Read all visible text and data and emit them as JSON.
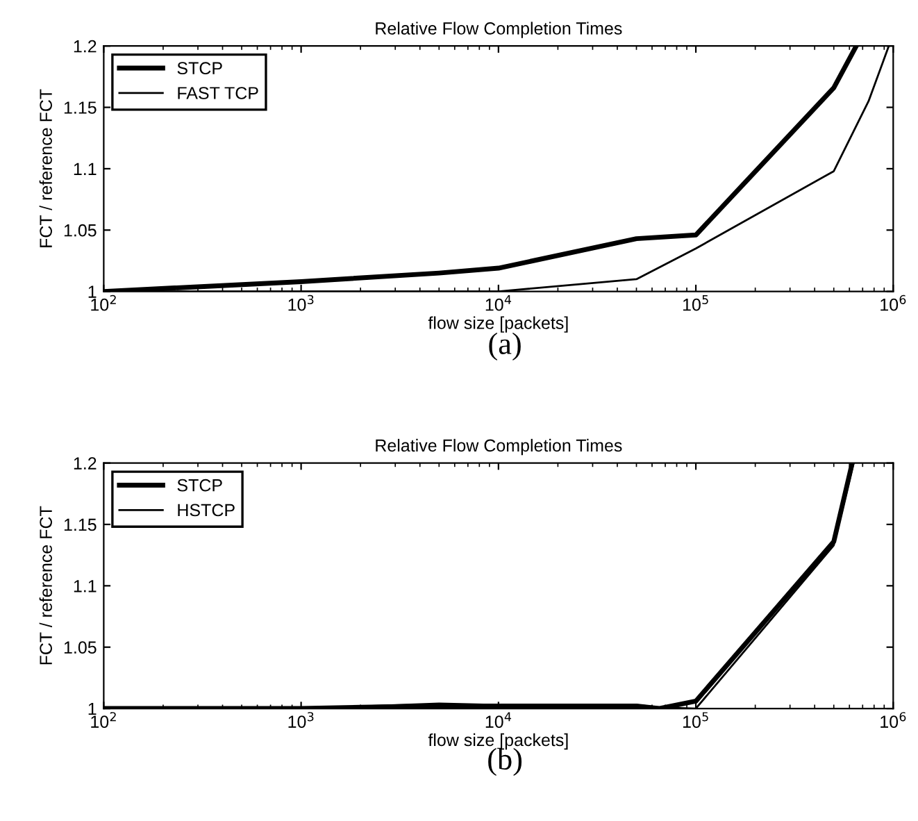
{
  "chart_data": [
    {
      "type": "line",
      "title": "Relative Flow Completion Times",
      "xlabel": "flow size [packets]",
      "ylabel": "FCT / reference FCT",
      "log": "x",
      "xlim": [
        100,
        1000000
      ],
      "xticks": [
        {
          "value": 100,
          "label": "10$^{2}$"
        },
        {
          "value": 1000,
          "label": "10$^{3}$"
        },
        {
          "value": 10000,
          "label": "10$^{4}$"
        },
        {
          "value": 100000,
          "label": "10$^{5}$"
        },
        {
          "value": 1000000,
          "label": "10$^{6}$"
        }
      ],
      "ylim": [
        1,
        1.2
      ],
      "yticks": [
        1,
        1.05,
        1.1,
        1.15,
        1.2
      ],
      "grid": false,
      "legend": "top left",
      "marker": "none",
      "line_style": "solid",
      "annotations": [
        "(a)"
      ],
      "series": [
        {
          "name": "STCP",
          "color": "#000000",
          "x": [
            100,
            1000,
            5000,
            10000,
            50000,
            100000,
            500000,
            650000
          ],
          "values": [
            1,
            1.008,
            1.015,
            1.019,
            1.043,
            1.046,
            1.166,
            1.2
          ]
        },
        {
          "name": "FAST TCP",
          "color": "#000000",
          "x": [
            100,
            10000,
            50000,
            100000,
            500000,
            750000,
            950000
          ],
          "values": [
            1,
            1,
            1.01,
            1.035,
            1.098,
            1.155,
            1.2
          ]
        }
      ]
    },
    {
      "type": "line",
      "title": "Relative Flow Completion Times",
      "xlabel": "flow size [packets]",
      "ylabel": "FCT / reference FCT",
      "log": "x",
      "xlim": [
        100,
        1000000
      ],
      "xticks": [
        {
          "value": 100,
          "label": "10$^{2}$"
        },
        {
          "value": 1000,
          "label": "10$^{3}$"
        },
        {
          "value": 10000,
          "label": "10$^{4}$"
        },
        {
          "value": 100000,
          "label": "10$^{5}$"
        },
        {
          "value": 1000000,
          "label": "10$^{6}$"
        }
      ],
      "ylim": [
        1,
        1.2
      ],
      "yticks": [
        1,
        1.05,
        1.1,
        1.15,
        1.2
      ],
      "grid": false,
      "legend": "top left",
      "marker": "none",
      "line_style": "solid",
      "annotations": [
        "(b)"
      ],
      "series": [
        {
          "name": "STCP",
          "color": "#000000",
          "x": [
            100,
            1000,
            2000,
            5000,
            10000,
            50000,
            65000,
            100000,
            500000,
            620000
          ],
          "values": [
            1,
            1,
            1.001,
            1.002,
            1.002,
            1.002,
            1.0,
            1.006,
            1.136,
            1.2
          ]
        },
        {
          "name": "HSTCP",
          "color": "#000000",
          "x": [
            100,
            1000,
            5000,
            10000,
            50000,
            65000,
            100000,
            500000,
            630000
          ],
          "values": [
            1,
            1,
            1.004,
            1.003,
            1.003,
            1.001,
            1.0,
            1.133,
            1.2
          ]
        }
      ]
    }
  ]
}
